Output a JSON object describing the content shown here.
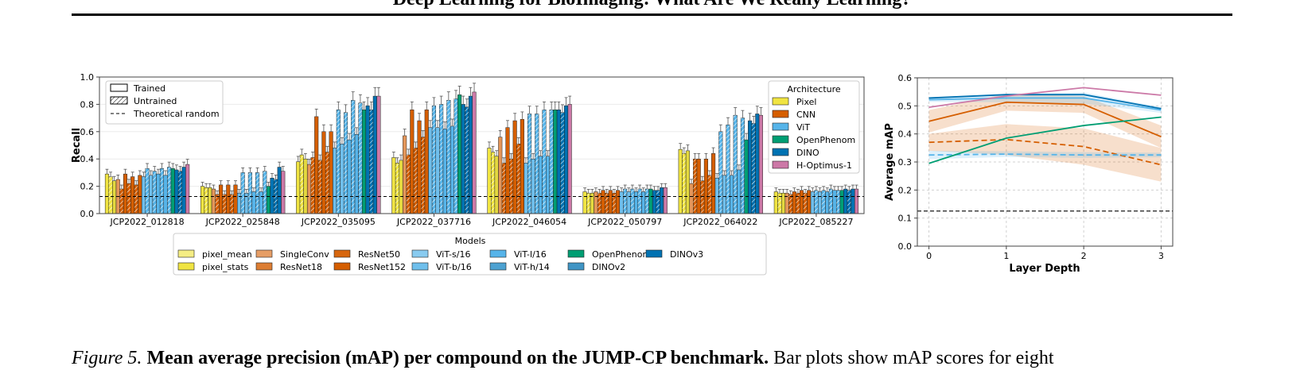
{
  "header": {
    "title": "Deep Learning for BioImaging: What Are We Really Learning?"
  },
  "caption": {
    "label": "Figure 5.",
    "title": "Mean average precision (mAP) per compound on the JUMP-CP benchmark.",
    "text": "Bar plots show mAP scores for eight"
  },
  "colors": {
    "Pixel": "#f0e442",
    "CNN": "#d55e00",
    "ViT": "#56b4e9",
    "OpenPhenom": "#009e73",
    "DINO": "#0072b2",
    "H-Optimus-1": "#cc79a7"
  },
  "chart_data": [
    {
      "type": "bar",
      "ylabel": "Recall",
      "ylim": [
        0,
        1.0
      ],
      "yticks": [
        "0.0",
        "0.2",
        "0.4",
        "0.6",
        "0.8",
        "1.0"
      ],
      "categories": [
        "JCP2022_012818",
        "JCP2022_025848",
        "JCP2022_035095",
        "JCP2022_037716",
        "JCP2022_046054",
        "JCP2022_050797",
        "JCP2022_064022",
        "JCP2022_085227"
      ],
      "theoretical_random": 0.125,
      "pattern_legend": [
        "Trained",
        "Untrained",
        "Theoretical random"
      ],
      "architecture_legend": {
        "title": "Architecture",
        "items": [
          "Pixel",
          "CNN",
          "ViT",
          "OpenPhenom",
          "DINO",
          "H-Optimus-1"
        ]
      },
      "models_legend": {
        "title": "Models",
        "items": [
          "pixel_mean",
          "pixel_stats",
          "SingleConv",
          "ResNet18",
          "ResNet50",
          "ResNet152",
          "ViT-s/16",
          "ViT-b/16",
          "ViT-l/16",
          "ViT-h/14",
          "OpenPhenom",
          "DINOv2",
          "DINOv3"
        ]
      },
      "series": [
        {
          "label": "pixel_mean",
          "arch": "Pixel",
          "values": [
            0.29,
            0.2,
            0.38,
            0.41,
            0.48,
            0.16,
            0.47,
            0.16
          ]
        },
        {
          "label": "pixel_mean untrained",
          "arch": "Pixel",
          "untrained": true,
          "values": [
            0.27,
            0.19,
            0.43,
            0.37,
            0.45,
            0.15,
            0.44,
            0.15
          ]
        },
        {
          "label": "pixel_stats",
          "arch": "Pixel",
          "values": [
            0.24,
            0.19,
            0.4,
            0.39,
            0.42,
            0.15,
            0.46,
            0.15
          ]
        },
        {
          "label": "SingleConv",
          "arch": "CNN",
          "values": [
            0.25,
            0.18,
            0.36,
            0.57,
            0.56,
            0.16,
            0.22,
            0.15
          ]
        },
        {
          "label": "SingleConv untrained",
          "arch": "CNN",
          "untrained": true,
          "values": [
            0.18,
            0.14,
            0.41,
            0.43,
            0.37,
            0.15,
            0.4,
            0.14
          ]
        },
        {
          "label": "ResNet18",
          "arch": "CNN",
          "values": [
            0.29,
            0.21,
            0.71,
            0.76,
            0.63,
            0.17,
            0.4,
            0.16
          ]
        },
        {
          "label": "ResNet18 untrained",
          "arch": "CNN",
          "untrained": true,
          "values": [
            0.22,
            0.14,
            0.39,
            0.48,
            0.4,
            0.15,
            0.24,
            0.15
          ]
        },
        {
          "label": "ResNet50",
          "arch": "CNN",
          "values": [
            0.27,
            0.21,
            0.6,
            0.68,
            0.68,
            0.17,
            0.4,
            0.17
          ]
        },
        {
          "label": "ResNet50 untrained",
          "arch": "CNN",
          "untrained": true,
          "values": [
            0.21,
            0.14,
            0.45,
            0.56,
            0.51,
            0.15,
            0.28,
            0.15
          ]
        },
        {
          "label": "ResNet152",
          "arch": "CNN",
          "values": [
            0.28,
            0.21,
            0.6,
            0.76,
            0.69,
            0.17,
            0.44,
            0.17
          ]
        },
        {
          "label": "ViT-s/16",
          "arch": "ViT",
          "values": [
            0.27,
            0.15,
            0.48,
            0.63,
            0.37,
            0.16,
            0.26,
            0.16
          ]
        },
        {
          "label": "ViT-s/16 untrained",
          "arch": "ViT",
          "untrained": true,
          "values": [
            0.33,
            0.3,
            0.76,
            0.79,
            0.73,
            0.18,
            0.6,
            0.17
          ]
        },
        {
          "label": "ViT-b/16",
          "arch": "ViT",
          "values": [
            0.28,
            0.15,
            0.51,
            0.63,
            0.4,
            0.16,
            0.28,
            0.16
          ]
        },
        {
          "label": "ViT-b/16 untrained",
          "arch": "ViT",
          "untrained": true,
          "values": [
            0.31,
            0.3,
            0.74,
            0.8,
            0.73,
            0.18,
            0.65,
            0.17
          ]
        },
        {
          "label": "ViT-l/16",
          "arch": "ViT",
          "values": [
            0.29,
            0.16,
            0.54,
            0.62,
            0.42,
            0.16,
            0.28,
            0.16
          ]
        },
        {
          "label": "ViT-l/16 untrained",
          "arch": "ViT",
          "untrained": true,
          "values": [
            0.33,
            0.3,
            0.83,
            0.83,
            0.76,
            0.18,
            0.72,
            0.18
          ]
        },
        {
          "label": "ViT-h/14",
          "arch": "ViT",
          "values": [
            0.28,
            0.16,
            0.58,
            0.64,
            0.42,
            0.16,
            0.32,
            0.17
          ]
        },
        {
          "label": "ViT-h/14 untrained",
          "arch": "ViT",
          "untrained": true,
          "values": [
            0.34,
            0.31,
            0.81,
            0.84,
            0.76,
            0.18,
            0.7,
            0.17
          ]
        },
        {
          "label": "OpenPhenom",
          "arch": "OpenPhenom",
          "values": [
            0.33,
            0.2,
            0.76,
            0.87,
            0.76,
            0.18,
            0.54,
            0.17
          ]
        },
        {
          "label": "DINOv2",
          "arch": "DINO",
          "values": [
            0.32,
            0.26,
            0.79,
            0.8,
            0.76,
            0.17,
            0.68,
            0.18
          ]
        },
        {
          "label": "DINOv2 untrained",
          "arch": "DINO",
          "untrained": true,
          "values": [
            0.31,
            0.25,
            0.76,
            0.78,
            0.74,
            0.17,
            0.66,
            0.17
          ]
        },
        {
          "label": "DINOv3",
          "arch": "DINO",
          "values": [
            0.34,
            0.34,
            0.86,
            0.86,
            0.79,
            0.19,
            0.73,
            0.18
          ]
        },
        {
          "label": "H-Optimus-1",
          "arch": "H-Optimus-1",
          "values": [
            0.36,
            0.31,
            0.86,
            0.89,
            0.8,
            0.19,
            0.72,
            0.18
          ]
        }
      ]
    },
    {
      "type": "line",
      "xlabel": "Layer Depth",
      "ylabel": "Average mAP",
      "x": [
        0,
        1,
        2,
        3
      ],
      "xlim": [
        -0.15,
        3.15
      ],
      "ylim": [
        0.0,
        0.6
      ],
      "xticks": [
        "0",
        "1",
        "2",
        "3"
      ],
      "yticks": [
        "0.0",
        "0.1",
        "0.2",
        "0.3",
        "0.4",
        "0.5",
        "0.6"
      ],
      "grid": true,
      "theoretical_random": 0.125,
      "series": [
        {
          "arch": "CNN",
          "values": [
            0.445,
            0.513,
            0.505,
            0.39
          ],
          "band": [
            0.04,
            0.03,
            0.03,
            0.04
          ]
        },
        {
          "arch": "CNN",
          "untrained": true,
          "values": [
            0.37,
            0.38,
            0.355,
            0.29
          ],
          "band": [
            0.03,
            0.055,
            0.065,
            0.06
          ]
        },
        {
          "arch": "ViT",
          "values": [
            0.522,
            0.528,
            0.528,
            0.485
          ],
          "band": [
            0.008,
            0.015,
            0.02,
            0.01
          ]
        },
        {
          "arch": "ViT",
          "untrained": true,
          "values": [
            0.325,
            0.328,
            0.325,
            0.325
          ],
          "band": [
            0.015,
            0.01,
            0.01,
            0.008
          ]
        },
        {
          "arch": "OpenPhenom",
          "values": [
            0.295,
            0.385,
            0.43,
            0.46
          ]
        },
        {
          "arch": "DINO",
          "values": [
            0.528,
            0.54,
            0.54,
            0.49
          ]
        },
        {
          "arch": "H-Optimus-1",
          "values": [
            0.495,
            0.535,
            0.565,
            0.538
          ]
        }
      ]
    }
  ]
}
